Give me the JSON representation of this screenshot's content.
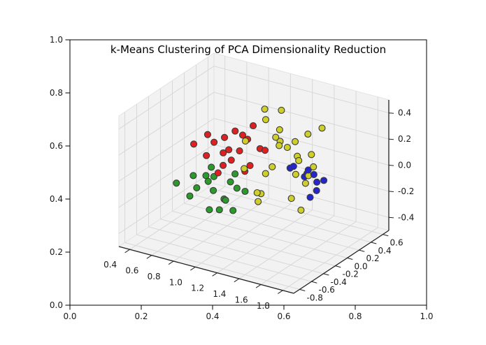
{
  "figure": {
    "background": "#ffffff"
  },
  "chart_data": {
    "type": "scatter",
    "projection": "3d",
    "title": "k-Means Clustering of PCA Dimensionality Reduction",
    "legend": "none",
    "grid": true,
    "axes_3d": {
      "pane_color": "#f2f2f2",
      "grid_color": "#d8d8d8",
      "axis_line_color": "#222222",
      "tick_label_color": "#1a1a1a",
      "x_range": [
        0.3,
        1.9
      ],
      "y_range": [
        -0.9,
        0.7
      ],
      "z_range": [
        -0.5,
        0.5
      ],
      "x_ticks": {
        "values": [
          0.4,
          0.6,
          0.8,
          1.0,
          1.2,
          1.4,
          1.6,
          1.8
        ],
        "labels": [
          "0.4",
          "0.6",
          "0.8",
          "1.0",
          "1.2",
          "1.4",
          "1.6",
          "1.8"
        ]
      },
      "y_ticks": {
        "values": [
          -0.8,
          -0.6,
          -0.4,
          -0.2,
          0.0,
          0.2,
          0.4,
          0.6
        ],
        "labels": [
          "-0.8",
          "-0.6",
          "-0.4",
          "-0.2",
          "0.0",
          "0.2",
          "0.4",
          "0.6"
        ]
      },
      "z_ticks": {
        "values": [
          -0.4,
          -0.2,
          0.0,
          0.2,
          0.4
        ],
        "labels": [
          "-0.4",
          "-0.2",
          "0.0",
          "0.2",
          "0.4"
        ]
      }
    },
    "outer_axes": {
      "x_range": [
        0.0,
        1.0
      ],
      "y_range": [
        0.0,
        1.0
      ],
      "x_ticks": {
        "values": [
          0.0,
          0.2,
          0.4,
          0.6,
          0.8,
          1.0
        ],
        "labels": [
          "0.0",
          "0.2",
          "0.4",
          "0.6",
          "0.8",
          "1.0"
        ]
      },
      "y_ticks": {
        "values": [
          0.0,
          0.2,
          0.4,
          0.6,
          0.8,
          1.0
        ],
        "labels": [
          "0.0",
          "0.2",
          "0.4",
          "0.6",
          "0.8",
          "1.0"
        ]
      }
    },
    "marker": {
      "size": 9,
      "edge_color": "#3a3a3a"
    },
    "series": [
      {
        "name": "cluster-red",
        "color": "#e02020",
        "points": [
          [
            0.55,
            -0.1,
            0.1
          ],
          [
            0.6,
            0.15,
            0.05
          ],
          [
            0.65,
            -0.05,
            0.18
          ],
          [
            0.68,
            0.25,
            -0.02
          ],
          [
            0.72,
            -0.2,
            0.08
          ],
          [
            0.75,
            0.05,
            0.15
          ],
          [
            0.78,
            0.3,
            0.1
          ],
          [
            0.8,
            -0.15,
            -0.05
          ],
          [
            0.82,
            0.1,
            0.2
          ],
          [
            0.85,
            -0.02,
            0.02
          ],
          [
            0.88,
            0.2,
            0.12
          ],
          [
            0.9,
            -0.25,
            0.06
          ],
          [
            0.92,
            0.08,
            -0.08
          ],
          [
            0.95,
            0.28,
            0.04
          ],
          [
            0.98,
            -0.12,
            0.15
          ],
          [
            1.0,
            0.02,
            0.0
          ],
          [
            1.05,
            0.18,
            0.08
          ],
          [
            0.7,
            0.12,
            0.0
          ],
          [
            0.86,
            0.33,
            0.18
          ]
        ]
      },
      {
        "name": "cluster-green",
        "color": "#2a9a2a",
        "points": [
          [
            0.5,
            -0.3,
            -0.15
          ],
          [
            0.55,
            -0.05,
            -0.25
          ],
          [
            0.6,
            -0.2,
            -0.1
          ],
          [
            0.62,
            0.1,
            -0.3
          ],
          [
            0.65,
            -0.35,
            -0.2
          ],
          [
            0.68,
            0.0,
            -0.15
          ],
          [
            0.72,
            -0.15,
            -0.35
          ],
          [
            0.75,
            0.15,
            -0.22
          ],
          [
            0.78,
            -0.28,
            -0.08
          ],
          [
            0.8,
            -0.05,
            -0.28
          ],
          [
            0.83,
            0.08,
            -0.12
          ],
          [
            0.85,
            -0.22,
            -0.3
          ],
          [
            0.88,
            0.02,
            -0.2
          ],
          [
            0.92,
            -0.12,
            -0.32
          ],
          [
            0.95,
            -0.3,
            -0.18
          ],
          [
            0.7,
            -0.08,
            -0.05
          ],
          [
            0.58,
            0.05,
            -0.18
          ],
          [
            0.9,
            0.12,
            -0.25
          ]
        ]
      },
      {
        "name": "cluster-yellow",
        "color": "#cfcf2a",
        "points": [
          [
            1.05,
            -0.15,
            0.25
          ],
          [
            1.08,
            0.12,
            0.42
          ],
          [
            1.1,
            0.1,
            0.35
          ],
          [
            1.12,
            -0.3,
            0.1
          ],
          [
            1.15,
            0.25,
            0.15
          ],
          [
            1.18,
            -0.05,
            0.0
          ],
          [
            1.2,
            0.18,
            0.42
          ],
          [
            1.2,
            0.15,
            0.28
          ],
          [
            1.22,
            -0.2,
            -0.1
          ],
          [
            1.25,
            0.05,
            0.2
          ],
          [
            1.28,
            0.3,
            0.05
          ],
          [
            1.3,
            -0.1,
            0.32
          ],
          [
            1.32,
            0.2,
            -0.05
          ],
          [
            1.35,
            -0.25,
            0.15
          ],
          [
            1.35,
            0.35,
            0.22
          ],
          [
            1.38,
            0.08,
            0.25
          ],
          [
            1.4,
            -0.02,
            -0.15
          ],
          [
            1.42,
            0.28,
            0.1
          ],
          [
            1.45,
            -0.18,
            0.3
          ],
          [
            1.48,
            0.12,
            0.0
          ],
          [
            1.5,
            -0.08,
            0.18
          ],
          [
            1.55,
            0.22,
            0.35
          ],
          [
            1.58,
            0.02,
            0.12
          ],
          [
            1.15,
            -0.12,
            -0.2
          ],
          [
            1.25,
            -0.32,
            -0.05
          ],
          [
            1.45,
            0.05,
            -0.25
          ],
          [
            1.6,
            -0.15,
            0.05
          ]
        ]
      },
      {
        "name": "cluster-blue",
        "color": "#2525cd",
        "points": [
          [
            1.35,
            0.05,
            0.05
          ],
          [
            1.4,
            0.2,
            -0.05
          ],
          [
            1.42,
            -0.02,
            0.1
          ],
          [
            1.45,
            0.15,
            0.0
          ],
          [
            1.47,
            0.28,
            -0.1
          ],
          [
            1.5,
            0.08,
            0.06
          ],
          [
            1.5,
            0.22,
            -0.14
          ],
          [
            1.53,
            0.12,
            0.02
          ],
          [
            1.55,
            0.25,
            -0.06
          ],
          [
            1.55,
            0.02,
            -0.12
          ]
        ]
      }
    ]
  }
}
